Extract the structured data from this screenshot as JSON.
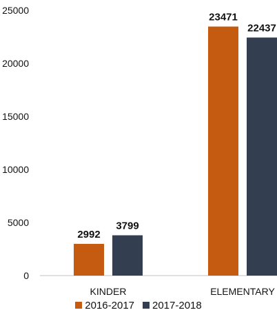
{
  "chart_data": {
    "type": "bar",
    "title": "",
    "xlabel": "",
    "ylabel": "",
    "categories": [
      "KINDER",
      "ELEMENTARY"
    ],
    "series": [
      {
        "name": "2016-2017",
        "values": [
          2992,
          23471
        ],
        "color": "#c55a11"
      },
      {
        "name": "2017-2018",
        "values": [
          3799,
          22437
        ],
        "color": "#333f50"
      }
    ],
    "ylim": [
      0,
      25000
    ],
    "yticks": [
      0,
      5000,
      10000,
      15000,
      20000,
      25000
    ],
    "grid": false,
    "legend_position": "bottom"
  }
}
